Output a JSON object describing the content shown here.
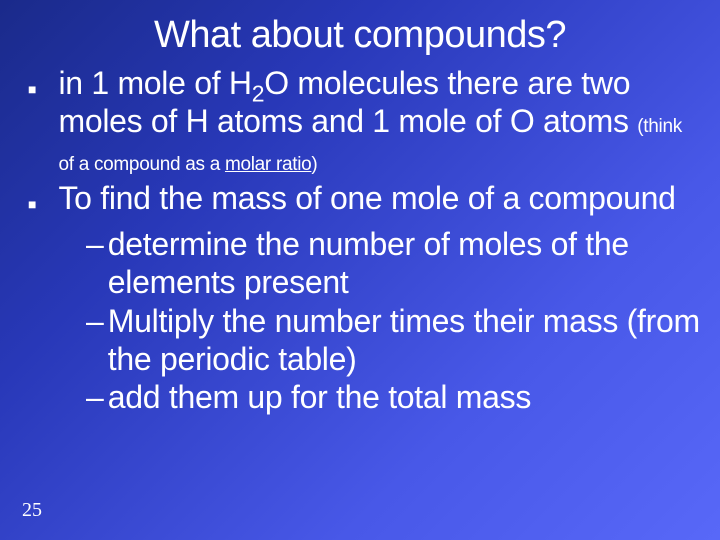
{
  "slide": {
    "title": "What about compounds?",
    "page_number": "25",
    "bullets": [
      {
        "pre": "in 1 mole of H",
        "sub": "2",
        "mid": "O molecules there are two moles of H atoms and 1 mole of O atoms ",
        "small_pre": "(think of a compound as a ",
        "small_underline": "molar ratio",
        "small_post": ")"
      },
      {
        "text": "To find the mass of one mole of a compound"
      }
    ],
    "dashes": [
      "determine the number of moles of the elements present",
      "Multiply the number times their mass (from the periodic table)",
      "add them up for the total mass"
    ]
  },
  "style": {
    "background_gradient": [
      "#1a2a8a",
      "#2838b8",
      "#4858e8",
      "#5868f8"
    ],
    "text_color": "#ffffff",
    "title_fontsize": 38,
    "body_fontsize": 32,
    "small_fontsize": 19,
    "pagenum_fontsize": 20
  }
}
